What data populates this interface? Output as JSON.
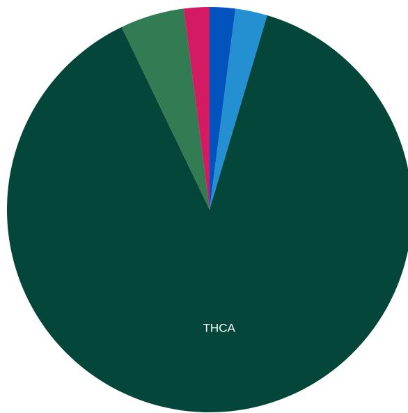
{
  "chart_data": {
    "type": "pie",
    "title": "",
    "start": "top",
    "direction": "clockwise",
    "slices": [
      {
        "label": "",
        "value": 2.0,
        "color": "#0353BE"
      },
      {
        "label": "",
        "value": 2.5,
        "color": "#2490D1"
      },
      {
        "label": "THCA",
        "value": 86.5,
        "color": "#04463A"
      },
      {
        "label": "",
        "value": 5.0,
        "color": "#337B53"
      },
      {
        "label": "",
        "value": 2.0,
        "color": "#D31A63"
      }
    ]
  }
}
